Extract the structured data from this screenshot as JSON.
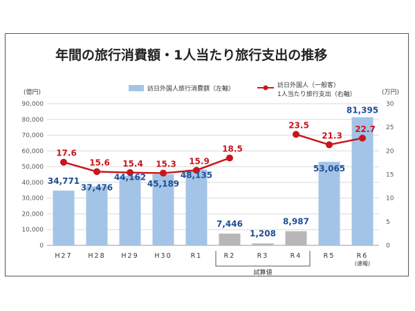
{
  "chart_data": {
    "type": "bar",
    "title": "年間の旅行消費額・1人当たり旅行支出の推移",
    "categories": [
      "H27",
      "H28",
      "H29",
      "H30",
      "R1",
      "R2",
      "R3",
      "R4",
      "R5",
      "R6"
    ],
    "category_notes": {
      "R6": "(速報)"
    },
    "estimated_group": {
      "label": "試算値",
      "categories": [
        "R2",
        "R3",
        "R4"
      ]
    },
    "left_axis": {
      "unit": "(億円)",
      "range": [
        0,
        90000
      ],
      "ticks": [
        "0",
        "10,000",
        "20,000",
        "30,000",
        "40,000",
        "50,000",
        "60,000",
        "70,000",
        "80,000",
        "90,000"
      ]
    },
    "right_axis": {
      "unit": "(万円)",
      "range": [
        0,
        30
      ],
      "ticks": [
        "0",
        "5",
        "10",
        "15",
        "20",
        "25",
        "30"
      ]
    },
    "grid": true,
    "legend_placement": "top",
    "series": [
      {
        "name": "訪日外国人旅行消費額（左軸）",
        "type": "bar",
        "axis": "left",
        "values": [
          34771,
          37476,
          44162,
          45189,
          48135,
          7446,
          1208,
          8987,
          53065,
          81395
        ],
        "labels": [
          "34,771",
          "37,476",
          "44,162",
          "45,189",
          "48,135",
          "7,446",
          "1,208",
          "8,987",
          "53,065",
          "81,395"
        ]
      },
      {
        "name_lines": [
          "訪日外国人（一般客）",
          "1人当たり旅行支出（右軸）"
        ],
        "type": "line",
        "axis": "right",
        "segments": [
          {
            "categories": [
              "H27",
              "H28",
              "H29",
              "H30",
              "R1",
              "R2"
            ],
            "values": [
              17.6,
              15.6,
              15.4,
              15.3,
              15.9,
              18.5
            ],
            "labels": [
              "17.6",
              "15.6",
              "15.4",
              "15.3",
              "15.9",
              "18.5"
            ]
          },
          {
            "categories": [
              "R4",
              "R5",
              "R6"
            ],
            "values": [
              23.5,
              21.3,
              22.7
            ],
            "labels": [
              "23.5",
              "21.3",
              "22.7"
            ]
          }
        ]
      }
    ],
    "colors": {
      "bar": "#a3c4e6",
      "bar_estimated": "#b7b7b7",
      "line": "#c8161d",
      "bar_label": "#1f4e96",
      "line_label": "#c8161d",
      "grid": "#d9d9d9"
    }
  }
}
